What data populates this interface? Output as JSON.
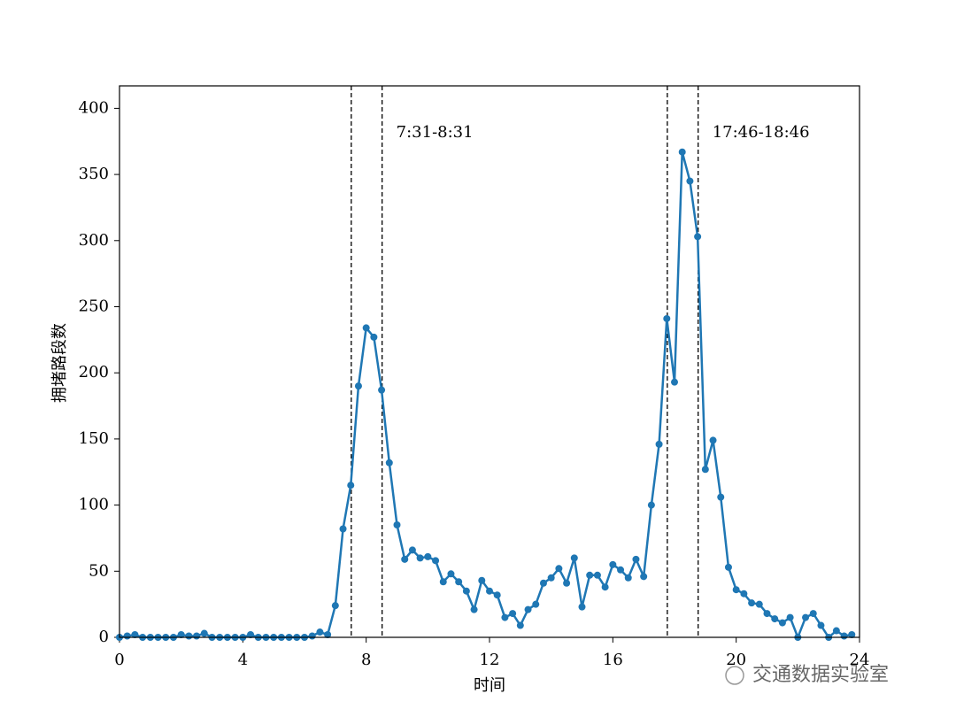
{
  "chart_data": {
    "type": "line",
    "x_label": "时间",
    "y_label": "拥堵路段数",
    "x": [
      0,
      0.25,
      0.5,
      0.75,
      1,
      1.25,
      1.5,
      1.75,
      2,
      2.25,
      2.5,
      2.75,
      3,
      3.25,
      3.5,
      3.75,
      4,
      4.25,
      4.5,
      4.75,
      5,
      5.25,
      5.5,
      5.75,
      6,
      6.25,
      6.5,
      6.75,
      7,
      7.25,
      7.5,
      7.75,
      8,
      8.25,
      8.5,
      8.75,
      9,
      9.25,
      9.5,
      9.75,
      10,
      10.25,
      10.5,
      10.75,
      11,
      11.25,
      11.5,
      11.75,
      12,
      12.25,
      12.5,
      12.75,
      13,
      13.25,
      13.5,
      13.75,
      14,
      14.25,
      14.5,
      14.75,
      15,
      15.25,
      15.5,
      15.75,
      16,
      16.25,
      16.5,
      16.75,
      17,
      17.25,
      17.5,
      17.75,
      18,
      18.25,
      18.5,
      18.75,
      19,
      19.25,
      19.5,
      19.75,
      20,
      20.25,
      20.5,
      20.75,
      21,
      21.25,
      21.5,
      21.75,
      22,
      22.25,
      22.5,
      22.75,
      23,
      23.25,
      23.5,
      23.75
    ],
    "series": [
      {
        "color": "#1f77b4",
        "values": [
          0,
          1,
          2,
          0,
          0,
          0,
          0,
          0,
          2,
          1,
          1,
          3,
          0,
          0,
          0,
          0,
          0,
          2,
          0,
          0,
          0,
          0,
          0,
          0,
          0,
          1,
          4,
          2,
          24,
          82,
          115,
          190,
          234,
          227,
          187,
          132,
          85,
          59,
          66,
          60,
          61,
          58,
          42,
          48,
          42,
          35,
          21,
          43,
          35,
          32,
          15,
          18,
          9,
          21,
          25,
          41,
          45,
          52,
          41,
          60,
          23,
          47,
          47,
          38,
          55,
          51,
          45,
          59,
          46,
          100,
          146,
          241,
          193,
          367,
          345,
          303,
          127,
          149,
          106,
          53,
          36,
          33,
          26,
          25,
          18,
          14,
          11,
          15,
          0,
          15,
          18,
          9,
          0,
          5,
          1,
          2
        ]
      }
    ],
    "vlines": [
      7.5167,
      8.5167,
      17.7667,
      18.7667
    ],
    "annotations": [
      "7:31-8:31",
      "17:46-18:46"
    ],
    "xlim": [
      0,
      24
    ],
    "xticks": [
      0,
      4,
      8,
      12,
      16,
      20,
      24
    ],
    "ylim": [
      0,
      417
    ],
    "yticks": [
      0,
      50,
      100,
      150,
      200,
      250,
      300,
      350,
      400
    ],
    "watermark": "交通数据实验室"
  }
}
